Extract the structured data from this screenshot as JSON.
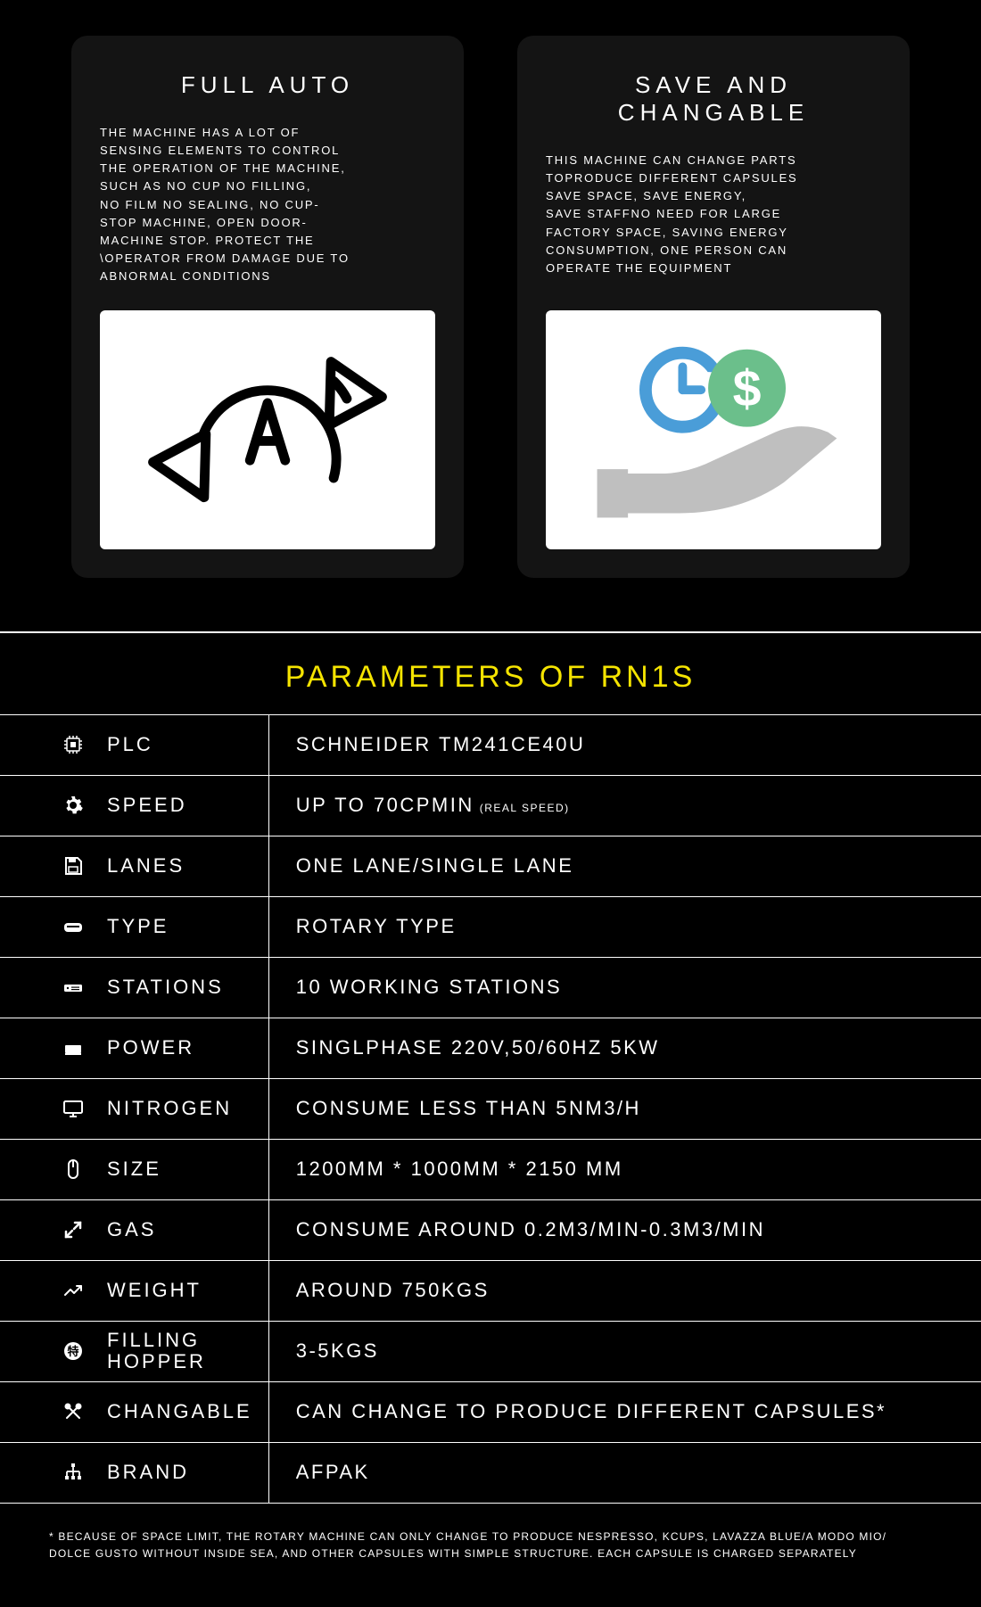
{
  "cards": [
    {
      "title": "FULL AUTO",
      "body": "THE MACHINE HAS A LOT OF\nSENSING ELEMENTS TO CONTROL\nTHE OPERATION OF THE MACHINE,\nSUCH AS NO CUP NO FILLING,\nNO FILM NO SEALING, NO CUP-\nSTOP MACHINE, OPEN DOOR-\nMACHINE STOP. PROTECT THE\n\\OPERATOR FROM DAMAGE DUE TO\nABNORMAL CONDITIONS"
    },
    {
      "title": "SAVE AND CHANGABLE",
      "body": "THIS MACHINE CAN CHANGE PARTS\nTOPRODUCE DIFFERENT CAPSULES\nSAVE SPACE, SAVE ENERGY,\nSAVE STAFFNO NEED FOR LARGE\nFACTORY SPACE, SAVING ENERGY\nCONSUMPTION, ONE PERSON CAN\nOPERATE THE EQUIPMENT"
    }
  ],
  "section_title": "PARAMETERS OF RN1S",
  "rows": [
    {
      "icon": "chip-icon",
      "label": "PLC",
      "value": "SCHNEIDER TM241CE40U"
    },
    {
      "icon": "gear-icon",
      "label": "SPEED",
      "value": "UP TO 70CPMIN",
      "note": "(REAL SPEED)"
    },
    {
      "icon": "save-icon",
      "label": "LANES",
      "value": "ONE LANE/SINGLE LANE"
    },
    {
      "icon": "drive-icon",
      "label": "TYPE",
      "value": "ROTARY TYPE"
    },
    {
      "icon": "server-icon",
      "label": "STATIONS",
      "value": "10 WORKING STATIONS"
    },
    {
      "icon": "power-icon",
      "label": "POWER",
      "value": "SINGLPHASE 220V,50/60HZ   5KW"
    },
    {
      "icon": "monitor-icon",
      "label": "NITROGEN",
      "value": "CONSUME LESS THAN 5NM3/H"
    },
    {
      "icon": "mouse-icon",
      "label": "SIZE",
      "value": "1200MM * 1000MM * 2150 MM"
    },
    {
      "icon": "expand-icon",
      "label": "GAS",
      "value": "CONSUME AROUND 0.2M3/MIN-0.3M3/MIN"
    },
    {
      "icon": "chart-icon",
      "label": "WEIGHT",
      "value": "AROUND 750KGS"
    },
    {
      "icon": "badge-icon",
      "label": "FILLING HOPPER",
      "value": "3-5KGS"
    },
    {
      "icon": "tools-icon",
      "label": "CHANGABLE",
      "value": "CAN CHANGE TO PRODUCE DIFFERENT CAPSULES*"
    },
    {
      "icon": "tree-icon",
      "label": "BRAND",
      "value": "AFPAK"
    }
  ],
  "footnote": "* BECAUSE OF SPACE LIMIT, THE ROTARY MACHINE CAN ONLY CHANGE TO PRODUCE NESPRESSO, KCUPS, LAVAZZA BLUE/A MODO MIO/ DOLCE GUSTO WITHOUT INSIDE SEA, AND OTHER CAPSULES WITH SIMPLE STRUCTURE. EACH CAPSULE IS CHARGED SEPARATELY",
  "colors": {
    "background": "#000000",
    "card_bg": "#141414",
    "text": "#ffffff",
    "accent": "#f5e400",
    "clock_blue": "#4a9dd8",
    "dollar_green": "#6bbf8b",
    "hand_gray": "#bfbfbf"
  }
}
